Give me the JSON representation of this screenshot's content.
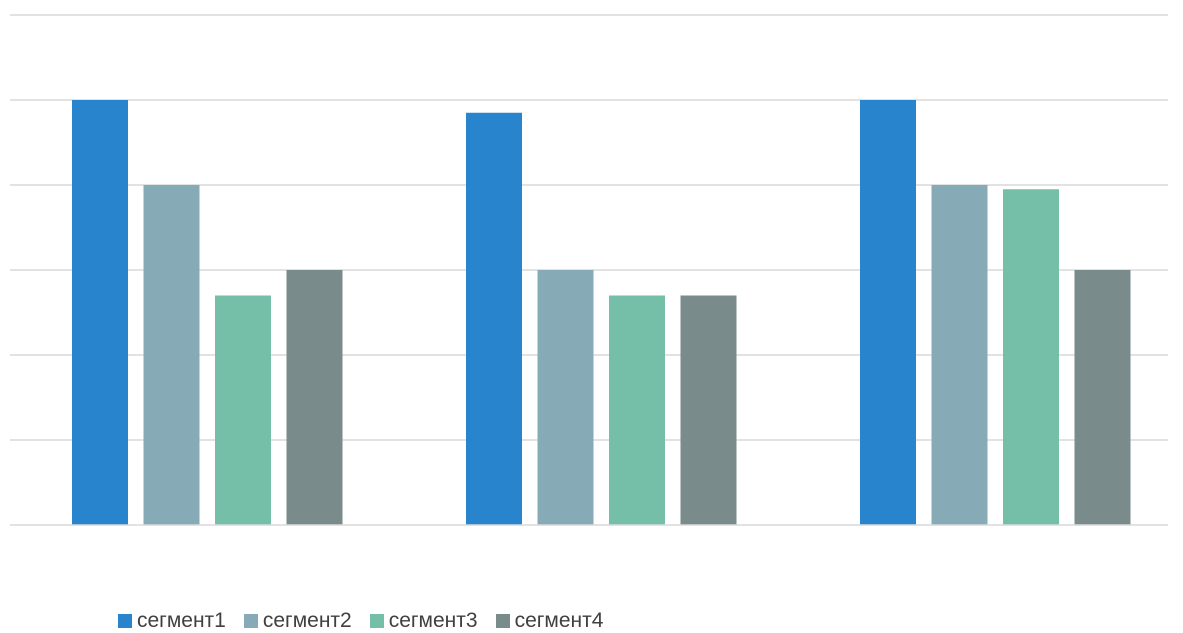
{
  "chart_data": {
    "type": "bar",
    "categories": [
      "",
      "",
      ""
    ],
    "series": [
      {
        "name": "сегмент1",
        "color": "#2884CC",
        "values": [
          5,
          4.85,
          5
        ]
      },
      {
        "name": "сегмент2",
        "color": "#87ABB6",
        "values": [
          4,
          3,
          4
        ]
      },
      {
        "name": "сегмент3",
        "color": "#75BEA7",
        "values": [
          2.7,
          2.7,
          3.95
        ]
      },
      {
        "name": "сегмент4",
        "color": "#7A8B8C",
        "values": [
          3,
          2.7,
          3
        ]
      }
    ],
    "ylim": [
      0,
      6
    ],
    "gridlines": [
      1,
      2,
      3,
      4,
      5,
      6
    ],
    "grid": true,
    "grid_color": "#d9d9d9",
    "axis_color": "#d9d9d9",
    "legend_position": "bottom",
    "title": "",
    "xlabel": "",
    "ylabel": ""
  }
}
